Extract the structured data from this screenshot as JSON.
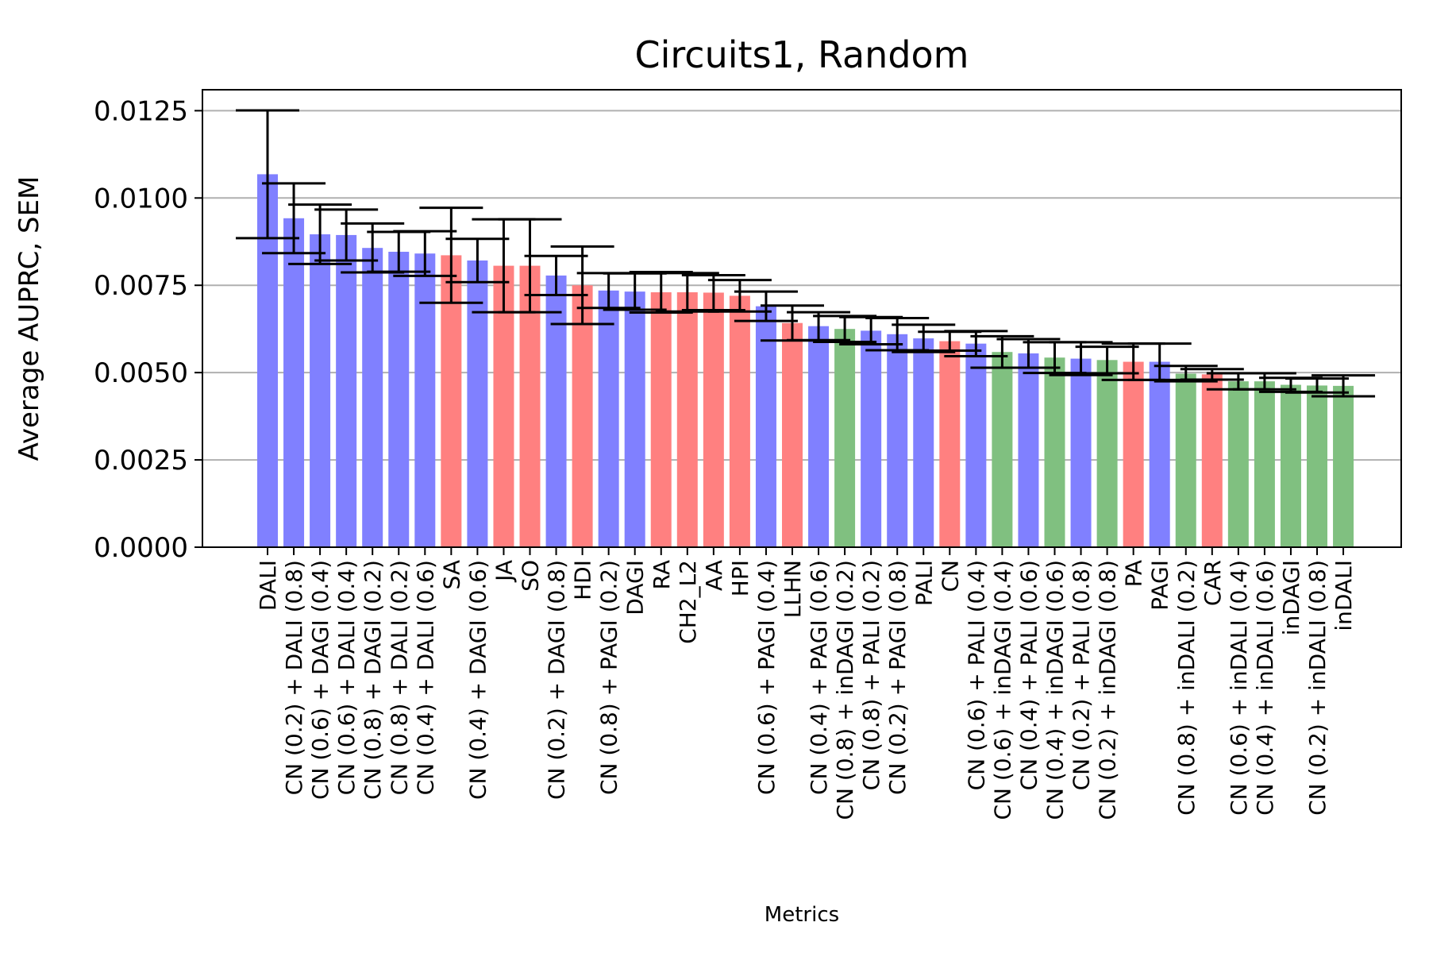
{
  "chart_data": {
    "type": "bar",
    "title": "Circuits1, Random",
    "xlabel": "Metrics",
    "ylabel": "Average AUPRC, SEM",
    "ylim": [
      0,
      0.0131
    ],
    "yticks": [
      "0.0000",
      "0.0025",
      "0.0050",
      "0.0075",
      "0.0100",
      "0.0125"
    ],
    "ytick_values": [
      0,
      0.0025,
      0.005,
      0.0075,
      0.01,
      0.0125
    ],
    "grid": "horizontal",
    "colors": {
      "blue": "#8080ff",
      "red": "#ff8080",
      "green": "#80c080",
      "error": "#000000",
      "grid": "#b0b0b0"
    },
    "categories": [
      "DALI",
      "CN (0.2) + DALI (0.8)",
      "CN (0.6) + DAGI (0.4)",
      "CN (0.6) + DALI (0.4)",
      "CN (0.8) + DAGI (0.2)",
      "CN (0.8) + DALI (0.2)",
      "CN (0.4) + DALI (0.6)",
      "SA",
      "CN (0.4) + DAGI (0.6)",
      "JA",
      "SO",
      "CN (0.2) + DAGI (0.8)",
      "HDI",
      "CN (0.8) + PAGI (0.2)",
      "DAGI",
      "RA",
      "CH2_L2",
      "AA",
      "HPI",
      "CN (0.6) + PAGI (0.4)",
      "LLHN",
      "CN (0.4) + PAGI (0.6)",
      "CN (0.8) + inDAGI (0.2)",
      "CN (0.8) + PALI (0.2)",
      "CN (0.2) + PAGI (0.8)",
      "PALI",
      "CN",
      "CN (0.6) + PALI (0.4)",
      "CN (0.6) + inDAGI (0.4)",
      "CN (0.4) + PALI (0.6)",
      "CN (0.4) + inDAGI (0.6)",
      "CN (0.2) + PALI (0.8)",
      "CN (0.2) + inDAGI (0.8)",
      "PA",
      "PAGI",
      "CN (0.8) + inDALI (0.2)",
      "CAR",
      "CN (0.6) + inDALI (0.4)",
      "CN (0.4) + inDALI (0.6)",
      "inDAGI",
      "CN (0.2) + inDALI (0.8)",
      "inDALI"
    ],
    "values": [
      0.01068,
      0.00942,
      0.00896,
      0.00894,
      0.00857,
      0.00846,
      0.00841,
      0.00836,
      0.00821,
      0.00806,
      0.00806,
      0.00778,
      0.0075,
      0.00735,
      0.00732,
      0.0073,
      0.0073,
      0.00729,
      0.0072,
      0.0069,
      0.00642,
      0.00633,
      0.00625,
      0.0062,
      0.0061,
      0.00598,
      0.0059,
      0.00583,
      0.00559,
      0.00555,
      0.00543,
      0.0054,
      0.00536,
      0.00531,
      0.00531,
      0.00497,
      0.00495,
      0.00475,
      0.00475,
      0.00465,
      0.00463,
      0.00462
    ],
    "errors": [
      0.00183,
      0.001,
      0.00085,
      0.00073,
      0.0007,
      0.00057,
      0.00064,
      0.00136,
      0.00062,
      0.00133,
      0.00133,
      0.00056,
      0.00111,
      0.0005,
      0.00052,
      0.00058,
      0.00055,
      0.0005,
      0.00045,
      0.00042,
      0.0005,
      0.0004,
      0.00037,
      0.00039,
      0.00046,
      0.00039,
      0.00027,
      0.00036,
      0.00045,
      0.00041,
      0.00044,
      0.00047,
      0.00038,
      0.00052,
      0.00052,
      0.00022,
      0.00015,
      0.00023,
      0.00023,
      0.0002,
      0.0002,
      0.0003
    ],
    "bar_colors": [
      "blue",
      "blue",
      "blue",
      "blue",
      "blue",
      "blue",
      "blue",
      "red",
      "blue",
      "red",
      "red",
      "blue",
      "red",
      "blue",
      "blue",
      "red",
      "red",
      "red",
      "red",
      "blue",
      "red",
      "blue",
      "green",
      "blue",
      "blue",
      "blue",
      "red",
      "blue",
      "green",
      "blue",
      "green",
      "blue",
      "green",
      "red",
      "blue",
      "green",
      "red",
      "green",
      "green",
      "green",
      "green",
      "green"
    ]
  }
}
